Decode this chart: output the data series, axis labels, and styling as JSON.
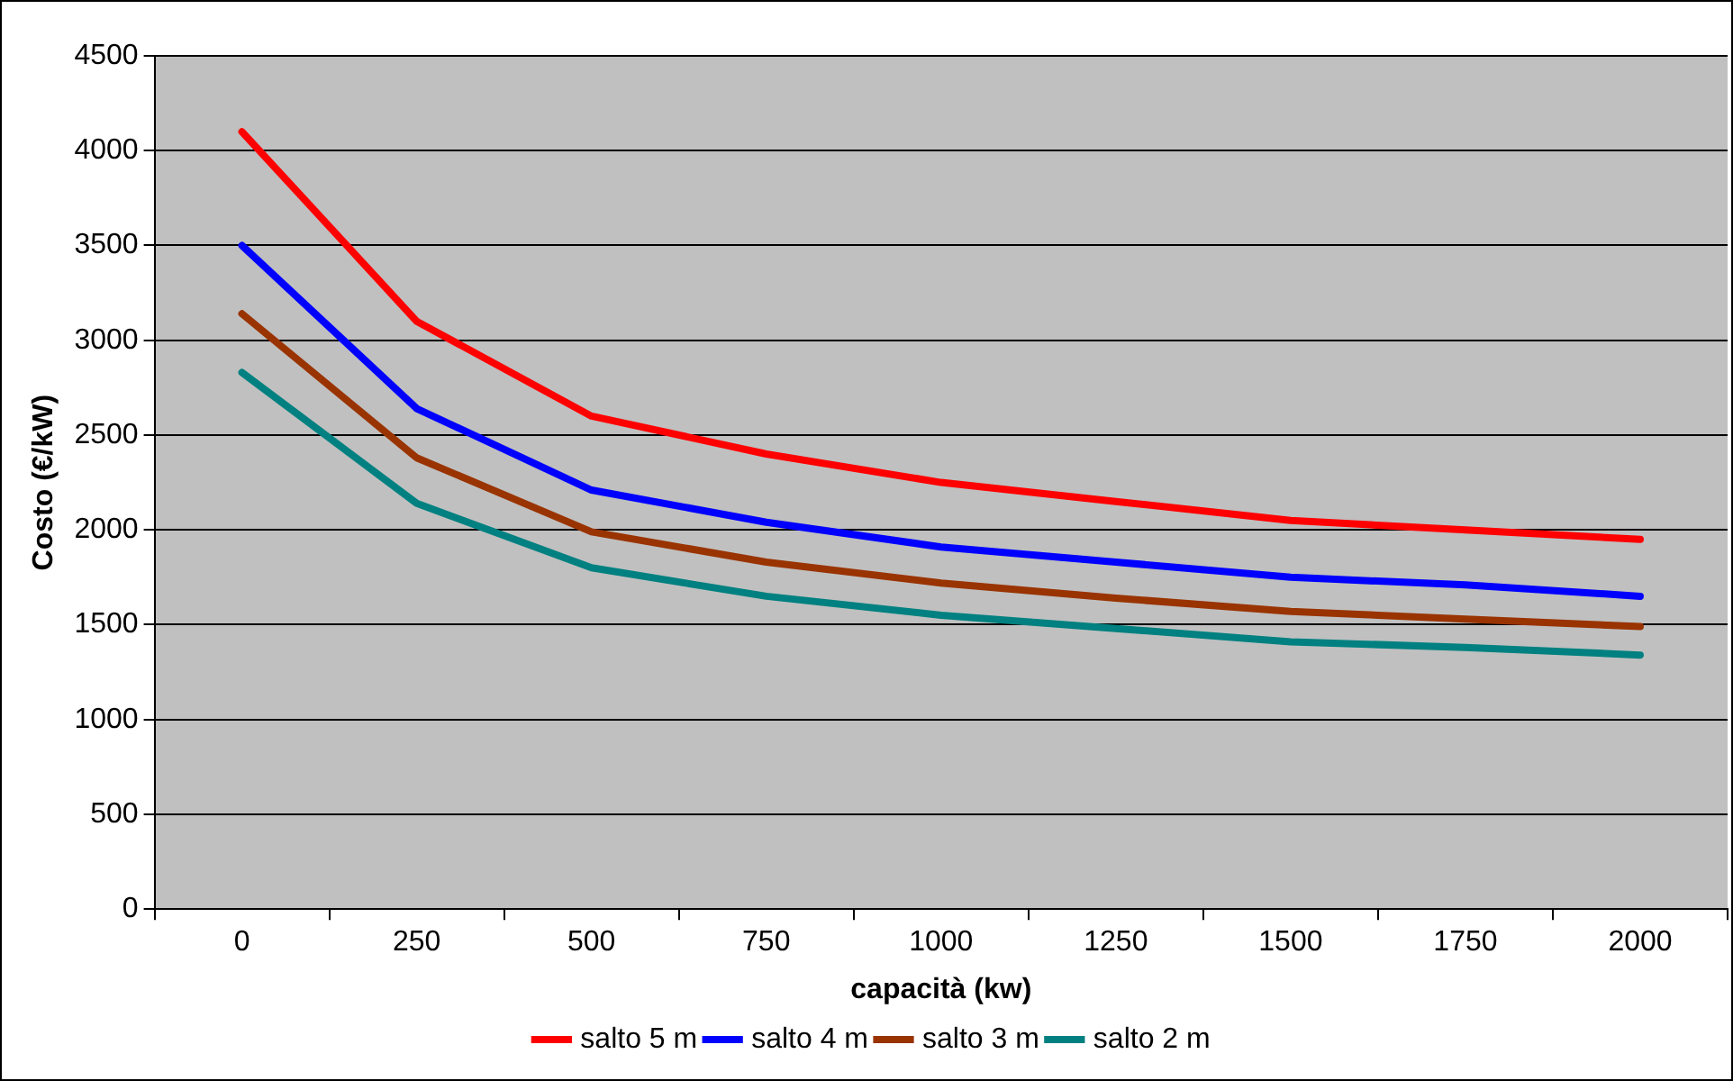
{
  "chart_data": {
    "type": "line",
    "xlabel": "capacità (kw)",
    "ylabel": "Costo (€/kW)",
    "categories": [
      "0",
      "250",
      "500",
      "750",
      "1000",
      "1250",
      "1500",
      "1750",
      "2000"
    ],
    "series": [
      {
        "name": "salto 5 m",
        "color": "#ff0000",
        "values": [
          4100,
          3100,
          2600,
          2400,
          2250,
          2150,
          2050,
          2000,
          1950
        ]
      },
      {
        "name": "salto 4 m",
        "color": "#0000ff",
        "values": [
          3500,
          2640,
          2210,
          2040,
          1910,
          1830,
          1750,
          1710,
          1650
        ]
      },
      {
        "name": "salto 3 m",
        "color": "#993300",
        "values": [
          3140,
          2380,
          1990,
          1830,
          1720,
          1640,
          1570,
          1530,
          1490
        ]
      },
      {
        "name": "salto 2 m",
        "color": "#008080",
        "values": [
          2830,
          2140,
          1800,
          1650,
          1550,
          1480,
          1410,
          1380,
          1340
        ]
      }
    ],
    "ylim": [
      0,
      4500
    ],
    "yticks": [
      0,
      500,
      1000,
      1500,
      2000,
      2500,
      3000,
      3500,
      4000,
      4500
    ],
    "grid": "y",
    "legend": "bottom",
    "marker": "none",
    "line_style": "solid"
  }
}
